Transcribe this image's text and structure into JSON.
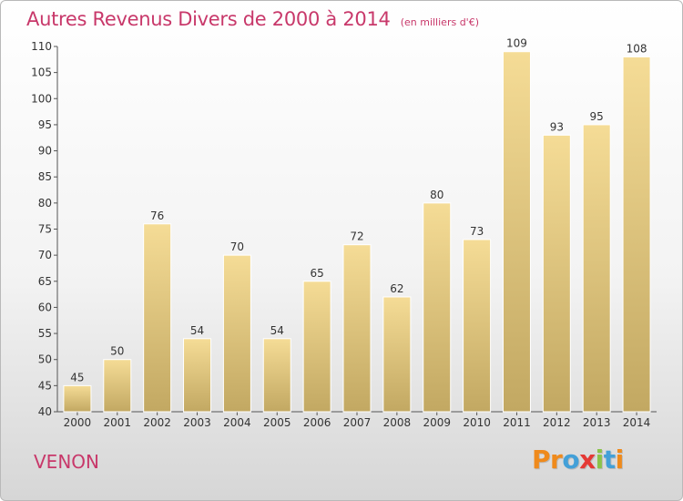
{
  "header": {
    "title": "Autres Revenus Divers de 2000 à 2014",
    "subtitle": "(en milliers d'€)"
  },
  "footer": {
    "commune": "VENON",
    "logo_text": "Proxiti"
  },
  "colors": {
    "title": "#c8386a",
    "bar_top": "#f5dc96",
    "bar_bottom": "#c2a862",
    "logo": [
      "#ef8a1c",
      "#ef8a1c",
      "#43a0d8",
      "#e53935",
      "#8bc34a",
      "#43a0d8",
      "#ef8a1c"
    ]
  },
  "chart_data": {
    "type": "bar",
    "title": "Autres Revenus Divers de 2000 à 2014",
    "subtitle": "(en milliers d'€)",
    "xlabel": "",
    "ylabel": "",
    "categories": [
      "2000",
      "2001",
      "2002",
      "2003",
      "2004",
      "2005",
      "2006",
      "2007",
      "2008",
      "2009",
      "2010",
      "2011",
      "2012",
      "2013",
      "2014"
    ],
    "values": [
      45,
      50,
      76,
      54,
      70,
      54,
      65,
      72,
      62,
      80,
      73,
      109,
      93,
      95,
      108
    ],
    "ylim": [
      40,
      110
    ],
    "yticks": [
      40,
      45,
      50,
      55,
      60,
      65,
      70,
      75,
      80,
      85,
      90,
      95,
      100,
      105,
      110
    ],
    "grid": false,
    "data_labels": true
  }
}
